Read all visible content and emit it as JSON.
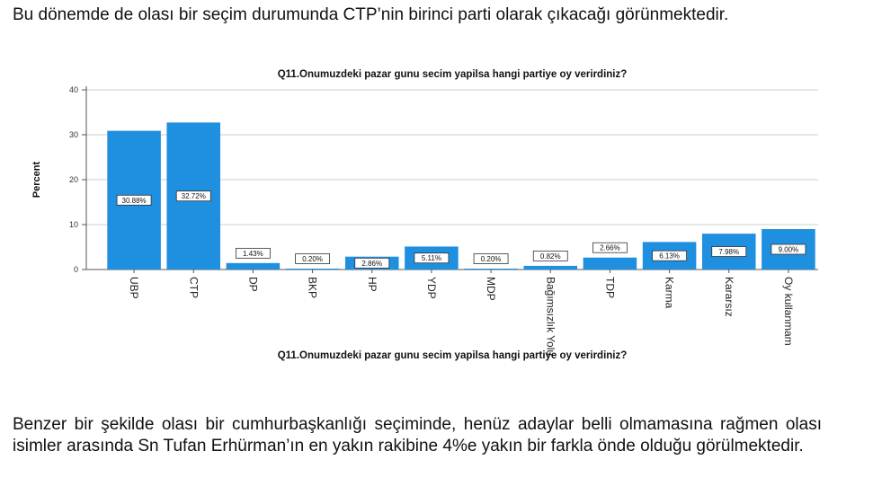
{
  "intro_text": "Bu dönemde de olası bir seçim durumunda CTP’nin birinci parti olarak çıkacağı görünmektedir.",
  "outro_text": "Benzer bir şekilde olası bir cumhurbaşkanlığı seçiminde, henüz adaylar belli olmamasına rağmen olası isimler arasında Sn Tufan Erhürman’ın en yakın rakibine 4%e yakın bir farkla önde olduğu görülmektedir.",
  "colors": {
    "bar": "#1f8fe0",
    "axis": "#555555",
    "grid": "#cccccc"
  },
  "chart_data": {
    "type": "bar",
    "title": "Q11.Onumuzdeki pazar gunu secim yapilsa hangi partiye oy verirdiniz?",
    "xlabel": "Q11.Onumuzdeki pazar gunu secim yapilsa hangi partiye oy verirdiniz?",
    "ylabel": "Percent",
    "ylim": [
      0,
      40
    ],
    "yticks": [
      "0",
      "10",
      "20",
      "30",
      "40"
    ],
    "categories": [
      "UBP",
      "CTP",
      "DP",
      "BKP",
      "HP",
      "YDP",
      "MDP",
      "Bağımsızlık Yolu",
      "TDP",
      "Karma",
      "Kararsız",
      "Oy kullanmam"
    ],
    "values": [
      30.88,
      32.72,
      1.43,
      0.2,
      2.86,
      5.11,
      0.2,
      0.82,
      2.66,
      6.13,
      7.98,
      9.0
    ],
    "data_labels": [
      "30.88%",
      "32.72%",
      "1.43%",
      "0.20%",
      "2.86%",
      "5.11%",
      "0.20%",
      "0.82%",
      "2.66%",
      "6.13%",
      "7.98%",
      "9.00%"
    ],
    "grid": true
  }
}
